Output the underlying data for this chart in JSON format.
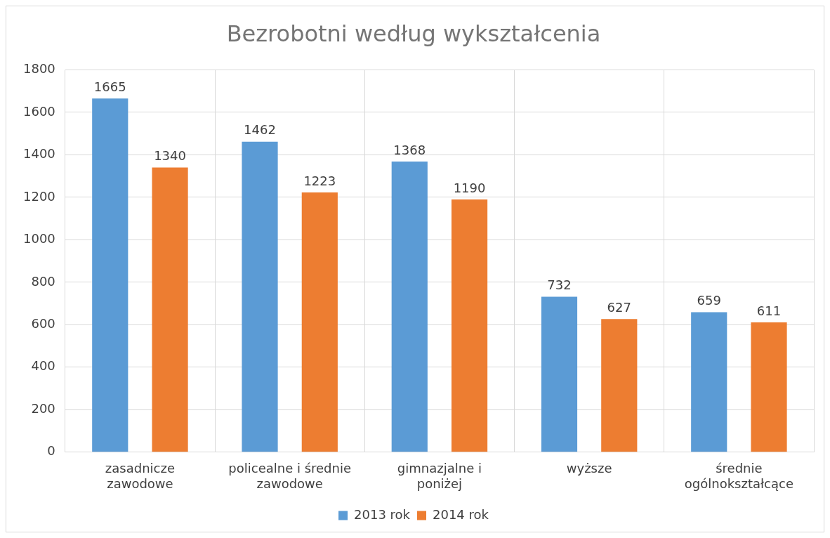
{
  "chart_data": {
    "type": "bar",
    "title": "Bezrobotni według wykształcenia",
    "categories": [
      "zasadnicze\nzawodowe",
      "policealne i średnie\nzawodowe",
      "gimnazjalne i\nponiżej",
      "wyższe",
      "średnie\nogólnokształcące"
    ],
    "series": [
      {
        "name": "2013 rok",
        "color": "#5b9bd5",
        "values": [
          1665,
          1462,
          1368,
          732,
          659
        ]
      },
      {
        "name": "2014 rok",
        "color": "#ed7d31",
        "values": [
          1340,
          1223,
          1190,
          627,
          611
        ]
      }
    ],
    "ylim": [
      0,
      1800
    ],
    "yticks": [
      0,
      200,
      400,
      600,
      800,
      1000,
      1200,
      1400,
      1600,
      1800
    ],
    "grid": true,
    "legend": "bottom",
    "data_labels": true
  }
}
